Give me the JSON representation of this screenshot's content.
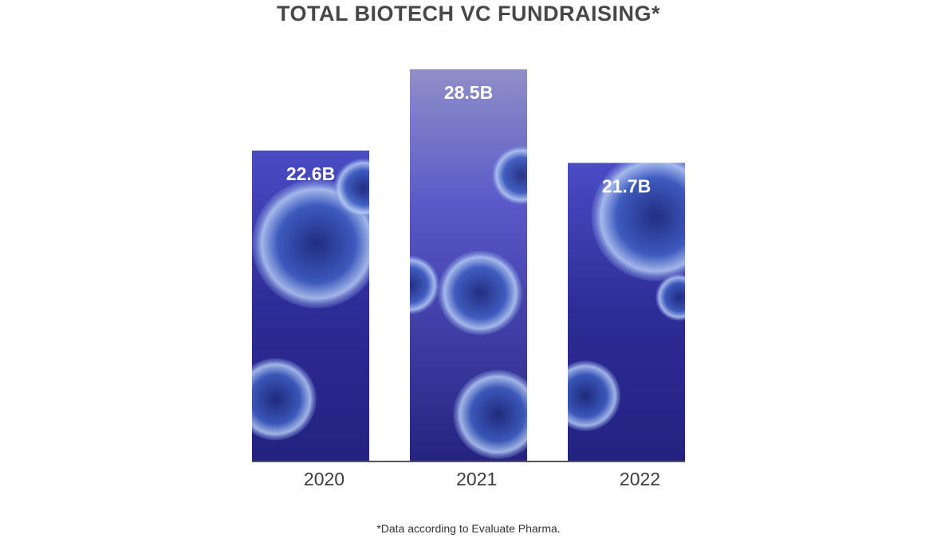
{
  "chart_data": {
    "type": "bar",
    "title": "TOTAL BIOTECH VC FUNDRAISING*",
    "categories": [
      "2020",
      "2021",
      "2022"
    ],
    "values": [
      22.6,
      28.5,
      21.7
    ],
    "value_labels": [
      "22.6B",
      "28.5B",
      "21.7B"
    ],
    "xlabel": "",
    "ylabel": "",
    "ylim": [
      0,
      28.5
    ],
    "grid": false,
    "legend": "none",
    "bar_fill": "blue cell-microscopy photo texture",
    "colors": {
      "bar_dark": "#1e1c6e",
      "bar_mid": "#3b3cb0",
      "bar_light": "#8aa0e8",
      "axis": "#555555"
    }
  },
  "footnote": "*Data according to Evaluate Pharma."
}
